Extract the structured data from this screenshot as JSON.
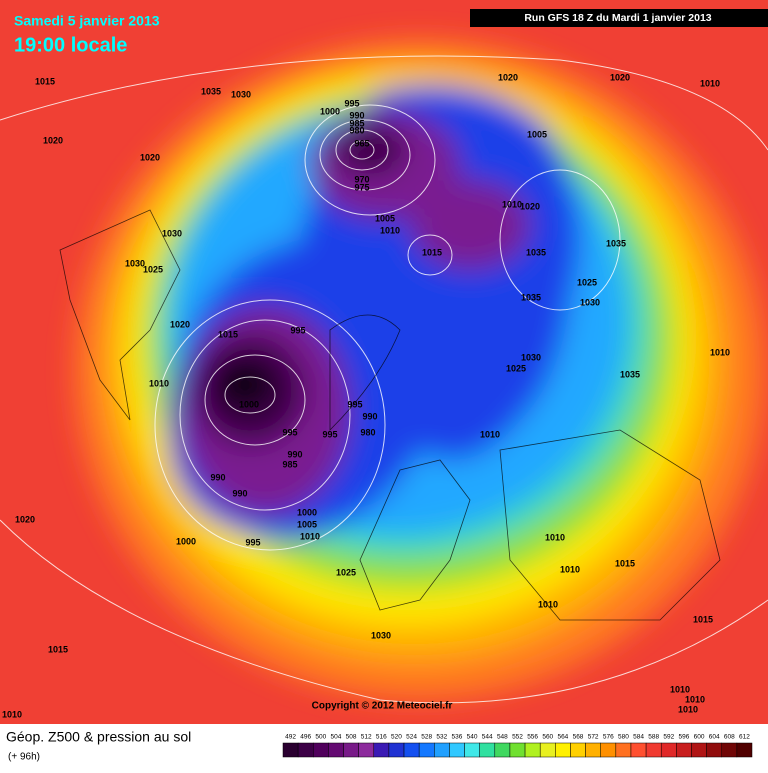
{
  "header": {
    "date": "Samedi 5 janvier 2013",
    "time": "19:00 locale",
    "run": "Run GFS 18 Z du Mardi 1 janvier 2013"
  },
  "pressure_labels": [
    "1015",
    "1035",
    "1030",
    "1020",
    "1020",
    "1000",
    "995",
    "990",
    "985",
    "980",
    "965",
    "970",
    "975",
    "1005",
    "1010",
    "1015",
    "1020",
    "1020",
    "1010",
    "1005",
    "1010",
    "1020",
    "1035",
    "1035",
    "1025",
    "1035",
    "1030",
    "1030",
    "1030",
    "1025",
    "1020",
    "1015",
    "995",
    "1010",
    "1000",
    "995",
    "990",
    "980",
    "995",
    "995",
    "990",
    "985",
    "990",
    "990",
    "1000",
    "1005",
    "1010",
    "1000",
    "995",
    "1030",
    "1025",
    "1035",
    "1010",
    "1010",
    "1020",
    "1010",
    "1010",
    "1015",
    "1010",
    "1025",
    "1030",
    "1015",
    "1015",
    "1010",
    "1010",
    "1010",
    "1010"
  ],
  "copyright": "Copyright © 2012 Meteociel.fr",
  "footer": {
    "title": "Géop. Z500 & pression au sol",
    "lead": "(+ 96h)"
  },
  "legend": {
    "values": [
      492,
      496,
      500,
      504,
      508,
      512,
      516,
      520,
      524,
      528,
      532,
      536,
      540,
      544,
      548,
      552,
      556,
      560,
      564,
      568,
      572,
      576,
      580,
      584,
      588,
      592,
      596,
      600,
      604,
      608,
      612
    ],
    "colors": [
      "#2a0030",
      "#3c0046",
      "#50005c",
      "#640a72",
      "#781a88",
      "#8c2a9c",
      "#3a1ab4",
      "#2032d2",
      "#1450f0",
      "#1478ff",
      "#20a0ff",
      "#30c8ff",
      "#40e8e8",
      "#30e0a0",
      "#40d860",
      "#70e030",
      "#b0f020",
      "#e8f020",
      "#fff000",
      "#ffd000",
      "#ffb000",
      "#ff9000",
      "#ff7020",
      "#ff5030",
      "#f03a30",
      "#e02828",
      "#c81e1e",
      "#b01414",
      "#900c0c",
      "#700606",
      "#500000"
    ]
  }
}
